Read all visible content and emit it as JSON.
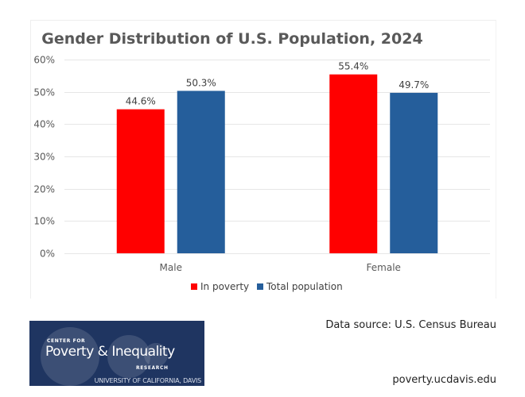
{
  "chart_data": {
    "type": "bar",
    "title": "Gender Distribution of U.S. Population, 2024",
    "xlabel": "",
    "ylabel": "",
    "categories": [
      "Male",
      "Female"
    ],
    "series": [
      {
        "name": "In poverty",
        "color": "#ff0000",
        "values": [
          44.6,
          55.4
        ],
        "labels": [
          "44.6%",
          "55.4%"
        ]
      },
      {
        "name": "Total population",
        "color": "#255e9b",
        "values": [
          50.3,
          49.7
        ],
        "labels": [
          "50.3%",
          "49.7%"
        ]
      }
    ],
    "ylim": [
      0,
      60
    ],
    "yticks": [
      0,
      10,
      20,
      30,
      40,
      50,
      60
    ],
    "ytick_labels": [
      "0%",
      "10%",
      "20%",
      "30%",
      "40%",
      "50%",
      "60%"
    ],
    "grid": true,
    "legend_position": "bottom"
  },
  "footer": {
    "logo": {
      "line1": "CENTER FOR",
      "line2": "Poverty & Inequality",
      "line3": "RESEARCH",
      "line4": "UNIVERSITY OF CALIFORNIA, DAVIS",
      "background": "#1f3561"
    },
    "source": "Data source: U.S. Census Bureau",
    "website": "poverty.ucdavis.edu"
  }
}
